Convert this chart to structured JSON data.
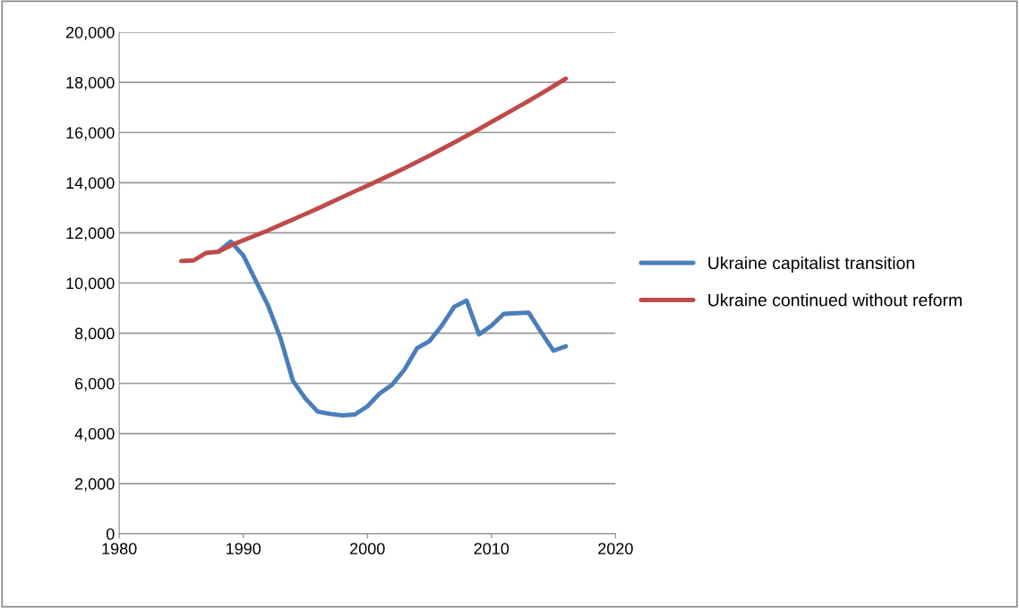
{
  "chart_data": {
    "type": "line",
    "x": [
      1985,
      1986,
      1987,
      1988,
      1989,
      1990,
      1991,
      1992,
      1993,
      1994,
      1995,
      1996,
      1997,
      1998,
      1999,
      2000,
      2001,
      2002,
      2003,
      2004,
      2005,
      2006,
      2007,
      2008,
      2009,
      2010,
      2011,
      2012,
      2013,
      2014,
      2015,
      2016
    ],
    "series": [
      {
        "name": "Ukraine capitalist transition",
        "color": "#4a7ebb",
        "values": [
          null,
          null,
          null,
          11250,
          11650,
          11100,
          10100,
          9100,
          7800,
          6100,
          5400,
          4870,
          4780,
          4720,
          4760,
          5080,
          5600,
          5950,
          6550,
          7400,
          7680,
          8300,
          9050,
          9300,
          7950,
          8300,
          8770,
          8800,
          8820,
          8050,
          7300,
          7480
        ]
      },
      {
        "name": "Ukraine continued without reform",
        "color": "#be4b48",
        "values": [
          10880,
          10900,
          11200,
          11250,
          11500,
          11700,
          11900,
          12100,
          12320,
          12530,
          12750,
          12970,
          13200,
          13430,
          13660,
          13880,
          14110,
          14340,
          14580,
          14830,
          15080,
          15340,
          15600,
          15870,
          16140,
          16420,
          16700,
          16980,
          17260,
          17550,
          17850,
          18150
        ]
      }
    ],
    "xlim": [
      1980,
      2020
    ],
    "xticks": [
      1980,
      1990,
      2000,
      2010,
      2020
    ],
    "ylim": [
      0,
      20000
    ],
    "yticks": [
      {
        "value": 0,
        "label": "0"
      },
      {
        "value": 2000,
        "label": "2,000"
      },
      {
        "value": 4000,
        "label": "4,000"
      },
      {
        "value": 6000,
        "label": "6,000"
      },
      {
        "value": 8000,
        "label": "8,000"
      },
      {
        "value": 10000,
        "label": "10,000"
      },
      {
        "value": 12000,
        "label": "12,000"
      },
      {
        "value": 14000,
        "label": "14,000"
      },
      {
        "value": 16000,
        "label": "16,000"
      },
      {
        "value": 18000,
        "label": "18,000"
      },
      {
        "value": 20000,
        "label": "20,000"
      }
    ],
    "grid": "y",
    "legend": "right",
    "marker": "none",
    "line_style": "solid"
  }
}
